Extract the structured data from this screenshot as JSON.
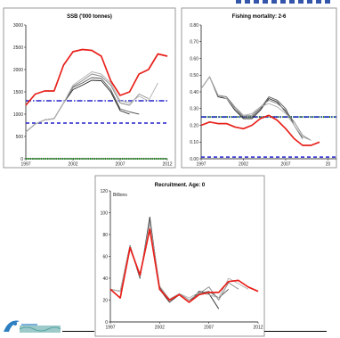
{
  "chart_data": [
    {
      "type": "line",
      "title": "SSB ('000 tonnes)",
      "ylim": [
        0,
        3000
      ],
      "y_ticks": [
        "0",
        "500",
        "1000",
        "1500",
        "2000",
        "2500",
        "3000"
      ],
      "x_ticks": [
        "1997",
        "2002",
        "2007",
        "2012"
      ],
      "xlim": [
        1997,
        2012
      ],
      "grid": false,
      "series": [
        {
          "role": "assessment",
          "color": "#e8201a",
          "x": [
            1997,
            1998,
            1999,
            2000,
            2001,
            2002,
            2003,
            2004,
            2005,
            2006,
            2007,
            2008,
            2009,
            2010,
            2011,
            2012
          ],
          "y": [
            1200,
            1450,
            1520,
            1520,
            2100,
            2400,
            2450,
            2430,
            2300,
            1750,
            1420,
            1500,
            1900,
            2000,
            2350,
            2300
          ]
        },
        {
          "role": "retro-1",
          "color": "#222222",
          "x": [
            1997,
            1998,
            1999,
            2000,
            2001,
            2002,
            2003,
            2004,
            2005,
            2006,
            2007,
            2008
          ],
          "y": [
            600,
            780,
            870,
            900,
            1250,
            1550,
            1650,
            1760,
            1750,
            1500,
            1080,
            1000
          ]
        },
        {
          "role": "retro-2",
          "color": "#555555",
          "x": [
            1997,
            1998,
            1999,
            2000,
            2001,
            2002,
            2003,
            2004,
            2005,
            2006,
            2007,
            2008,
            2009
          ],
          "y": [
            600,
            780,
            870,
            900,
            1250,
            1600,
            1700,
            1820,
            1800,
            1550,
            1120,
            1050,
            1000
          ]
        },
        {
          "role": "retro-3",
          "color": "#888888",
          "x": [
            1997,
            1998,
            1999,
            2000,
            2001,
            2002,
            2003,
            2004,
            2005,
            2006,
            2007,
            2008,
            2009,
            2010
          ],
          "y": [
            600,
            780,
            870,
            900,
            1250,
            1620,
            1750,
            1900,
            1850,
            1650,
            1250,
            1200,
            1450,
            1350
          ]
        },
        {
          "role": "retro-4",
          "color": "#b0b0b0",
          "x": [
            1997,
            1998,
            1999,
            2000,
            2001,
            2002,
            2003,
            2004,
            2005,
            2006,
            2007,
            2008,
            2009,
            2010,
            2011
          ],
          "y": [
            600,
            780,
            870,
            900,
            1250,
            1650,
            1800,
            1950,
            1900,
            1700,
            1300,
            1250,
            1400,
            1300,
            1700
          ]
        }
      ],
      "reference_lines": [
        {
          "y": 1300,
          "color": "#2222cc",
          "style": "dashdot"
        },
        {
          "y": 800,
          "color": "#2222cc",
          "style": "dashed"
        },
        {
          "y": 0,
          "color": "#118811",
          "style": "dotted"
        }
      ]
    },
    {
      "type": "line",
      "title": "Fishing mortality: 2-6",
      "ylim": [
        0,
        0.8
      ],
      "y_ticks": [
        "0.00",
        "0.10",
        "0.20",
        "0.30",
        "0.40",
        "0.50",
        "0.60",
        "0.70",
        "0.80"
      ],
      "x_ticks": [
        "1997",
        "2002",
        "2007",
        "20"
      ],
      "xlim": [
        1997,
        2013
      ],
      "grid": false,
      "series": [
        {
          "role": "assessment",
          "color": "#e8201a",
          "x": [
            1997,
            1998,
            1999,
            2000,
            2001,
            2002,
            2003,
            2004,
            2005,
            2006,
            2007,
            2008,
            2009,
            2010,
            2011
          ],
          "y": [
            0.2,
            0.22,
            0.21,
            0.21,
            0.19,
            0.18,
            0.2,
            0.24,
            0.26,
            0.23,
            0.18,
            0.12,
            0.08,
            0.08,
            0.1
          ]
        },
        {
          "role": "retro-1",
          "color": "#222222",
          "x": [
            1997,
            1998,
            1999,
            2000,
            2001,
            2002,
            2003,
            2004,
            2005,
            2006,
            2007,
            2008
          ],
          "y": [
            0.42,
            0.49,
            0.37,
            0.36,
            0.29,
            0.24,
            0.24,
            0.29,
            0.36,
            0.34,
            0.28,
            0.22
          ]
        },
        {
          "role": "retro-2",
          "color": "#555555",
          "x": [
            1997,
            1998,
            1999,
            2000,
            2001,
            2002,
            2003,
            2004,
            2005,
            2006,
            2007,
            2008,
            2009
          ],
          "y": [
            0.42,
            0.49,
            0.38,
            0.37,
            0.3,
            0.25,
            0.25,
            0.3,
            0.37,
            0.35,
            0.3,
            0.2,
            0.12
          ]
        },
        {
          "role": "retro-3",
          "color": "#888888",
          "x": [
            1997,
            1998,
            1999,
            2000,
            2001,
            2002,
            2003,
            2004,
            2005,
            2006,
            2007,
            2008,
            2009,
            2010
          ],
          "y": [
            0.42,
            0.49,
            0.38,
            0.37,
            0.31,
            0.26,
            0.26,
            0.31,
            0.35,
            0.33,
            0.29,
            0.22,
            0.14,
            0.11
          ]
        },
        {
          "role": "retro-4",
          "color": "#b0b0b0",
          "x": [
            1997,
            1998,
            1999,
            2000,
            2001,
            2002,
            2003,
            2004,
            2005,
            2006,
            2007,
            2008,
            2009,
            2010
          ],
          "y": [
            0.42,
            0.49,
            0.38,
            0.36,
            0.3,
            0.26,
            0.27,
            0.31,
            0.33,
            0.31,
            0.27,
            0.2,
            0.13,
            0.11
          ]
        }
      ],
      "reference_lines": [
        {
          "y": 0.25,
          "color": "#118811",
          "style": "dotted"
        },
        {
          "y": 0.25,
          "color": "#2222cc",
          "style": "dashdot"
        },
        {
          "y": 0.01,
          "color": "#2222cc",
          "style": "dashed"
        }
      ]
    },
    {
      "type": "line",
      "title": "Recruitment. Age: 0",
      "units_label": "Billions",
      "ylim": [
        0,
        120
      ],
      "y_ticks": [
        "0",
        "20",
        "40",
        "60",
        "80",
        "100",
        "120"
      ],
      "x_ticks": [
        "1997",
        "2002",
        "2007",
        "2012"
      ],
      "xlim": [
        1997,
        2012
      ],
      "grid": false,
      "series": [
        {
          "role": "assessment",
          "color": "#e8201a",
          "x": [
            1997,
            1998,
            1999,
            2000,
            2001,
            2002,
            2003,
            2004,
            2005,
            2006,
            2007,
            2008,
            2009,
            2010,
            2011,
            2012
          ],
          "y": [
            30,
            22,
            68,
            43,
            85,
            30,
            20,
            25,
            18,
            25,
            27,
            27,
            37,
            38,
            32,
            28
          ]
        },
        {
          "role": "retro-1",
          "color": "#222222",
          "x": [
            1997,
            1998,
            1999,
            2000,
            2001,
            2002,
            2003,
            2004,
            2005,
            2006,
            2007,
            2008
          ],
          "y": [
            30,
            28,
            70,
            40,
            96,
            30,
            18,
            25,
            18,
            28,
            26,
            12
          ]
        },
        {
          "role": "retro-2",
          "color": "#555555",
          "x": [
            1997,
            1998,
            1999,
            2000,
            2001,
            2002,
            2003,
            2004,
            2005,
            2006,
            2007,
            2008,
            2009
          ],
          "y": [
            30,
            28,
            70,
            40,
            94,
            32,
            18,
            25,
            18,
            26,
            28,
            22,
            30
          ]
        },
        {
          "role": "retro-3",
          "color": "#888888",
          "x": [
            1997,
            1998,
            1999,
            2000,
            2001,
            2002,
            2003,
            2004,
            2005,
            2006,
            2007,
            2008,
            2009,
            2010
          ],
          "y": [
            30,
            28,
            70,
            41,
            92,
            33,
            20,
            26,
            20,
            26,
            32,
            20,
            36,
            30
          ]
        },
        {
          "role": "retro-4",
          "color": "#b0b0b0",
          "x": [
            1997,
            1998,
            1999,
            2000,
            2001,
            2002,
            2003,
            2004,
            2005,
            2006,
            2007,
            2008,
            2009,
            2010,
            2011
          ],
          "y": [
            30,
            28,
            69,
            42,
            90,
            33,
            21,
            26,
            22,
            27,
            25,
            22,
            40,
            35,
            30
          ]
        }
      ],
      "reference_lines": []
    }
  ],
  "colors": {
    "panel_border": "#9a9a9a",
    "axis": "#000000",
    "accent_topline": "#3355aa",
    "logo_blue": "#2e7fc1",
    "logo_teal": "#9cc9c9"
  },
  "icons": {
    "logo": "organisation-logo"
  }
}
